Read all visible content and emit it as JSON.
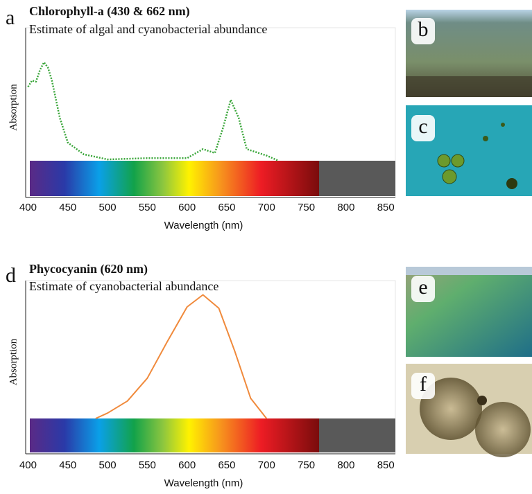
{
  "chart_data": [
    {
      "type": "line",
      "panel": "a",
      "title": "Chlorophyll-a (430 & 662 nm)",
      "subtitle": "Estimate of algal and cyanobacterial abundance",
      "x_label": "Wavelength (nm)",
      "y_label": "Absorption",
      "xlim": [
        397,
        862
      ],
      "ylim": [
        0,
        1
      ],
      "xticks": [
        400,
        450,
        500,
        550,
        600,
        650,
        700,
        750,
        800,
        850
      ],
      "series": [
        {
          "color": "#3aa63a",
          "line_style": "dotted",
          "x": [
            400,
            405,
            410,
            415,
            420,
            425,
            430,
            440,
            450,
            470,
            500,
            550,
            600,
            620,
            635,
            645,
            655,
            665,
            675,
            700,
            715
          ],
          "values": [
            0.57,
            0.62,
            0.61,
            0.7,
            0.76,
            0.72,
            0.62,
            0.33,
            0.14,
            0.05,
            0.01,
            0.02,
            0.02,
            0.09,
            0.06,
            0.25,
            0.47,
            0.33,
            0.09,
            0.04,
            0
          ]
        }
      ]
    },
    {
      "type": "line",
      "panel": "d",
      "title": "Phycocyanin (620 nm)",
      "subtitle": "Estimate of cyanobacterial abundance",
      "x_label": "Wavelength (nm)",
      "y_label": "Absorption",
      "xlim": [
        397,
        862
      ],
      "ylim": [
        0,
        1
      ],
      "xticks": [
        400,
        450,
        500,
        550,
        600,
        650,
        700,
        750,
        800,
        850
      ],
      "series": [
        {
          "color": "#f08a3c",
          "line_style": "solid",
          "x": [
            485,
            500,
            525,
            550,
            575,
            600,
            620,
            640,
            660,
            680,
            700
          ],
          "values": [
            0,
            0.04,
            0.13,
            0.3,
            0.57,
            0.83,
            0.92,
            0.82,
            0.5,
            0.15,
            0
          ]
        }
      ]
    }
  ],
  "photos": [
    "b",
    "c",
    "e",
    "f"
  ]
}
